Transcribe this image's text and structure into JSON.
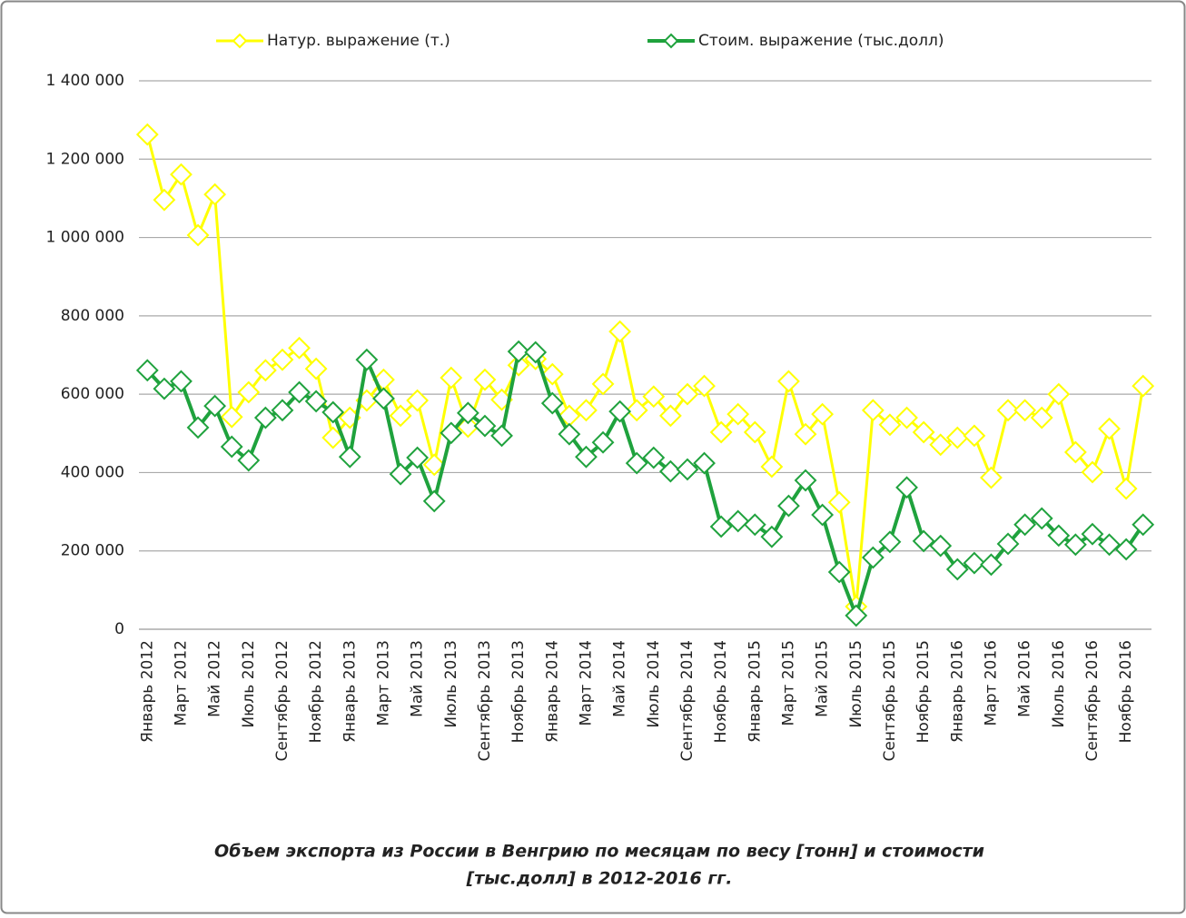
{
  "chart_data": {
    "type": "line",
    "title": [
      "Объем экспорта из России в Венгрию по месяцам по весу [тонн] и стоимости",
      "[тыс.долл] в 2012-2016 гг."
    ],
    "categories": [
      "Январь 2012",
      null,
      "Март 2012",
      null,
      "Май 2012",
      null,
      "Июль 2012",
      null,
      "Сентябрь 2012",
      null,
      "Ноябрь 2012",
      null,
      "Январь 2013",
      null,
      "Март 2013",
      null,
      "Май 2013",
      null,
      "Июль 2013",
      null,
      "Сентябрь 2013",
      null,
      "Ноябрь 2013",
      null,
      "Январь 2014",
      null,
      "Март 2014",
      null,
      "Май 2014",
      null,
      "Июль 2014",
      null,
      "Сентябрь 2014",
      null,
      "Ноябрь 2014",
      null,
      "Январь 2015",
      null,
      "Март 2015",
      null,
      "Май 2015",
      null,
      "Июль 2015",
      null,
      "Сентябрь 2015",
      null,
      "Ноябрь 2015",
      null,
      "Январь 2016",
      null,
      "Март 2016",
      null,
      "Май 2016",
      null,
      "Июль 2016",
      null,
      "Сентябрь 2016",
      null,
      "Ноябрь 2016",
      null
    ],
    "series": [
      {
        "name": "Натур. выражение (т.)",
        "color": "#ffff00",
        "values": [
          1263000,
          1096000,
          1161000,
          1006000,
          1110000,
          542000,
          605000,
          661000,
          688000,
          718000,
          665000,
          489000,
          540000,
          584000,
          637000,
          545000,
          584000,
          420000,
          642000,
          517000,
          637000,
          586000,
          674000,
          690000,
          651000,
          545000,
          559000,
          626000,
          760000,
          559000,
          594000,
          545000,
          600000,
          621000,
          503000,
          549000,
          503000,
          415000,
          633000,
          498000,
          549000,
          324000,
          58000,
          559000,
          522000,
          540000,
          503000,
          471000,
          489000,
          494000,
          387000,
          559000,
          559000,
          540000,
          600000,
          452000,
          401000,
          512000,
          359000,
          621000
        ]
      },
      {
        "name": "Стоим. выражение (тыс.долл)",
        "color": "#1fa23d",
        "values": [
          661000,
          614000,
          633000,
          515000,
          570000,
          466000,
          431000,
          540000,
          559000,
          605000,
          582000,
          554000,
          440000,
          688000,
          589000,
          396000,
          438000,
          327000,
          501000,
          552000,
          519000,
          494000,
          709000,
          707000,
          577000,
          498000,
          440000,
          477000,
          556000,
          424000,
          438000,
          403000,
          408000,
          424000,
          262000,
          276000,
          267000,
          236000,
          315000,
          380000,
          292000,
          146000,
          35000,
          183000,
          223000,
          362000,
          225000,
          213000,
          153000,
          169000,
          165000,
          218000,
          267000,
          283000,
          239000,
          216000,
          243000,
          216000,
          204000,
          267000
        ]
      }
    ],
    "ylim": [
      0,
      1400000
    ],
    "yticks": [
      0,
      {
        "value": 200000,
        "label": "200 000"
      },
      {
        "value": 400000,
        "label": "400 000"
      },
      {
        "value": 600000,
        "label": "600 000"
      },
      {
        "value": 800000,
        "label": "800 000"
      },
      {
        "value": 1000000,
        "label": "1 000 000"
      },
      {
        "value": 1200000,
        "label": "1 200 000"
      },
      {
        "value": 1400000,
        "label": "1 400 000"
      }
    ],
    "grid": true,
    "legend": "top"
  }
}
